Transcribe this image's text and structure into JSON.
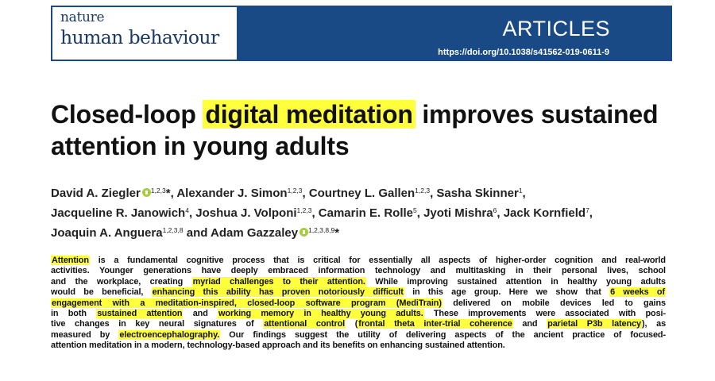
{
  "header": {
    "journal_line1": "nature",
    "journal_line2": "human behaviour",
    "section": "ARTICLES",
    "doi": "https://doi.org/10.1038/s41562-019-0611-9",
    "colors": {
      "banner": "#1a4a86",
      "highlight": "#ffff3c",
      "orcid": "#a6ce39"
    }
  },
  "title": {
    "pre": "Closed-loop ",
    "highlight": "digital meditation",
    "post1": " improves sustained",
    "line2": "attention in young adults"
  },
  "authors": {
    "a1": "David A. Ziegler",
    "a1_sup": "1,2,3",
    "a2": "Alexander J. Simon",
    "a2_sup": "1,2,3",
    "a3": "Courtney L. Gallen",
    "a3_sup": "1,2,3",
    "a4": "Sasha Skinner",
    "a4_sup": "1",
    "a5": "Jacqueline R. Janowich",
    "a5_sup": "4",
    "a6": "Joshua J. Volponi",
    "a6_sup": "1,2,3",
    "a7": "Camarin E. Rolle",
    "a7_sup": "5",
    "a8": "Jyoti Mishra",
    "a8_sup": "6",
    "a9": "Jack Kornfield",
    "a9_sup": "7",
    "a10": "Joaquin A. Anguera",
    "a10_sup": "1,2,3,8",
    "a11": "Adam Gazzaley",
    "a11_sup": "1,2,3,8,9",
    "and": "and",
    "star": "*"
  },
  "abstract": {
    "l1_h1": "Attention",
    "l1_t1": " is a fundamental cognitive process that is critical for essentially all aspects of higher-order cognition and real-world",
    "l2_t1": "activities. Younger generations have deeply embraced information technology and multitasking in their personal lives, school",
    "l3_t1": "and the workplace, creating ",
    "l3_h1": "myriad challenges to their attention.",
    "l3_t2": " While improving sustained attention in healthy young adults",
    "l4_t1": "would be beneficial, ",
    "l4_h1": "enhancing this ability has proven notoriously difficult",
    "l4_t2": " in this age group. Here we show that ",
    "l4_h2": "6 weeks of",
    "l5_h1": "engagement with a meditation-inspired, closed-loop software program (MediTrain)",
    "l5_t1": " delivered on mobile devices led to gains",
    "l6_t1": "in both ",
    "l6_h1": "sustained attention",
    "l6_t2": " and ",
    "l6_h2": "working memory in healthy young adults.",
    "l6_t3": " These improvements were associated with posi-",
    "l7_t1": "tive changes in key neural signatures of ",
    "l7_h1": "attentional control",
    "l7_t2": " (",
    "l7_h2": "frontal theta inter-trial coherence",
    "l7_t3": " and ",
    "l7_h3": "parietal P3b latency",
    "l7_t4": "), as",
    "l8_t1": "measured by ",
    "l8_h1": "electroencephalography.",
    "l8_t2": " Our findings suggest the utility of delivering aspects of the ancient practice of focused-",
    "l9_t1": "attention meditation in a modern, technology-based approach and its benefits on enhancing sustained attention."
  }
}
